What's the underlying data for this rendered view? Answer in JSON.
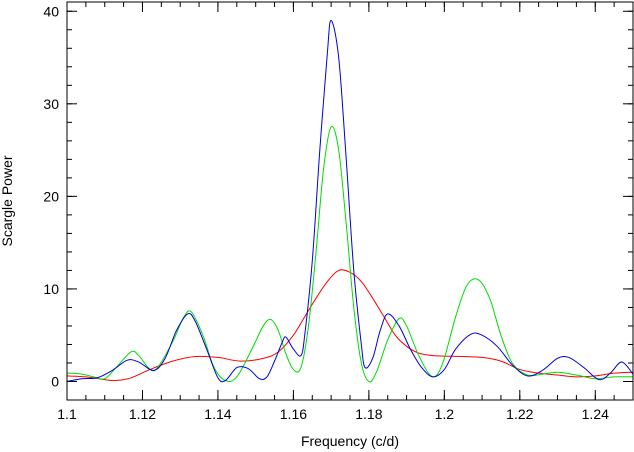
{
  "chart_data": {
    "type": "line",
    "title": "",
    "xlabel": "Frequency (c/d)",
    "ylabel": "Scargle Power",
    "xlim": [
      1.1,
      1.25
    ],
    "ylim": [
      -2,
      41
    ],
    "x_ticks": [
      {
        "value": 1.1,
        "label": "1.1"
      },
      {
        "value": 1.12,
        "label": "1.12"
      },
      {
        "value": 1.14,
        "label": "1.14"
      },
      {
        "value": 1.16,
        "label": "1.16"
      },
      {
        "value": 1.18,
        "label": "1.18"
      },
      {
        "value": 1.2,
        "label": "1.2"
      },
      {
        "value": 1.22,
        "label": "1.22"
      },
      {
        "value": 1.24,
        "label": "1.24"
      }
    ],
    "x_minor_step": 0.005,
    "y_ticks": [
      {
        "value": 0,
        "label": "0"
      },
      {
        "value": 10,
        "label": "10"
      },
      {
        "value": 20,
        "label": "20"
      },
      {
        "value": 30,
        "label": "30"
      },
      {
        "value": 40,
        "label": "40"
      }
    ],
    "y_minor_step": 2,
    "grid": false,
    "legend": "none",
    "series": [
      {
        "color": "#ff0000",
        "points": [
          [
            1.1,
            0.6
          ],
          [
            1.105,
            0.5
          ],
          [
            1.11,
            0.2
          ],
          [
            1.113,
            0.1
          ],
          [
            1.117,
            0.4
          ],
          [
            1.122,
            1.3
          ],
          [
            1.128,
            2.2
          ],
          [
            1.134,
            2.7
          ],
          [
            1.14,
            2.6
          ],
          [
            1.146,
            2.2
          ],
          [
            1.152,
            2.5
          ],
          [
            1.156,
            3.2
          ],
          [
            1.16,
            5.0
          ],
          [
            1.163,
            7.0
          ],
          [
            1.166,
            9.0
          ],
          [
            1.169,
            10.8
          ],
          [
            1.172,
            12.0
          ],
          [
            1.175,
            11.8
          ],
          [
            1.178,
            10.8
          ],
          [
            1.181,
            9.0
          ],
          [
            1.184,
            7.0
          ],
          [
            1.187,
            5.0
          ],
          [
            1.19,
            3.8
          ],
          [
            1.193,
            3.1
          ],
          [
            1.197,
            2.8
          ],
          [
            1.205,
            2.7
          ],
          [
            1.21,
            2.6
          ],
          [
            1.215,
            2.2
          ],
          [
            1.22,
            1.3
          ],
          [
            1.225,
            0.9
          ],
          [
            1.23,
            0.7
          ],
          [
            1.235,
            0.5
          ],
          [
            1.24,
            0.6
          ],
          [
            1.245,
            0.9
          ],
          [
            1.25,
            1.0
          ]
        ]
      },
      {
        "color": "#00dd00",
        "points": [
          [
            1.1,
            0.9
          ],
          [
            1.104,
            0.8
          ],
          [
            1.107,
            0.5
          ],
          [
            1.11,
            0.3
          ],
          [
            1.113,
            1.5
          ],
          [
            1.117,
            3.2
          ],
          [
            1.119,
            2.8
          ],
          [
            1.122,
            1.3
          ],
          [
            1.124,
            1.5
          ],
          [
            1.128,
            4.3
          ],
          [
            1.131,
            7.0
          ],
          [
            1.133,
            7.5
          ],
          [
            1.136,
            5.0
          ],
          [
            1.139,
            1.5
          ],
          [
            1.142,
            0.1
          ],
          [
            1.145,
            0.5
          ],
          [
            1.149,
            3.5
          ],
          [
            1.152,
            6.0
          ],
          [
            1.154,
            6.7
          ],
          [
            1.156,
            5.5
          ],
          [
            1.158,
            3.0
          ],
          [
            1.16,
            1.3
          ],
          [
            1.162,
            1.5
          ],
          [
            1.164,
            6.0
          ],
          [
            1.166,
            14.0
          ],
          [
            1.168,
            23.0
          ],
          [
            1.17,
            27.5
          ],
          [
            1.172,
            25.0
          ],
          [
            1.174,
            17.0
          ],
          [
            1.176,
            8.0
          ],
          [
            1.178,
            2.0
          ],
          [
            1.18,
            0.0
          ],
          [
            1.182,
            1.0
          ],
          [
            1.185,
            4.5
          ],
          [
            1.188,
            6.8
          ],
          [
            1.19,
            6.0
          ],
          [
            1.193,
            3.0
          ],
          [
            1.196,
            0.8
          ],
          [
            1.198,
            0.7
          ],
          [
            1.2,
            2.5
          ],
          [
            1.203,
            7.0
          ],
          [
            1.206,
            10.4
          ],
          [
            1.209,
            11.0
          ],
          [
            1.212,
            9.0
          ],
          [
            1.215,
            5.0
          ],
          [
            1.218,
            2.0
          ],
          [
            1.222,
            0.7
          ],
          [
            1.226,
            0.8
          ],
          [
            1.23,
            1.0
          ],
          [
            1.235,
            0.7
          ],
          [
            1.24,
            0.3
          ],
          [
            1.245,
            0.5
          ],
          [
            1.25,
            0.5
          ]
        ]
      },
      {
        "color": "#0000dd",
        "points": [
          [
            1.1,
            0.0
          ],
          [
            1.104,
            0.3
          ],
          [
            1.108,
            0.4
          ],
          [
            1.112,
            1.2
          ],
          [
            1.116,
            2.3
          ],
          [
            1.119,
            2.1
          ],
          [
            1.123,
            1.2
          ],
          [
            1.126,
            2.5
          ],
          [
            1.129,
            5.5
          ],
          [
            1.132,
            7.3
          ],
          [
            1.134,
            6.5
          ],
          [
            1.137,
            3.5
          ],
          [
            1.14,
            0.4
          ],
          [
            1.142,
            0.1
          ],
          [
            1.145,
            1.5
          ],
          [
            1.148,
            1.4
          ],
          [
            1.151,
            0.3
          ],
          [
            1.153,
            0.5
          ],
          [
            1.155,
            2.2
          ],
          [
            1.157,
            4.2
          ],
          [
            1.158,
            4.8
          ],
          [
            1.16,
            3.5
          ],
          [
            1.162,
            2.8
          ],
          [
            1.163,
            5.0
          ],
          [
            1.165,
            13.0
          ],
          [
            1.167,
            25.0
          ],
          [
            1.169,
            35.5
          ],
          [
            1.17,
            39.0
          ],
          [
            1.172,
            35.0
          ],
          [
            1.174,
            24.0
          ],
          [
            1.176,
            12.0
          ],
          [
            1.178,
            4.0
          ],
          [
            1.179,
            1.5
          ],
          [
            1.181,
            2.5
          ],
          [
            1.183,
            5.5
          ],
          [
            1.185,
            7.3
          ],
          [
            1.188,
            6.0
          ],
          [
            1.191,
            3.5
          ],
          [
            1.194,
            1.5
          ],
          [
            1.197,
            0.5
          ],
          [
            1.2,
            1.3
          ],
          [
            1.203,
            3.5
          ],
          [
            1.207,
            5.1
          ],
          [
            1.21,
            5.0
          ],
          [
            1.214,
            3.8
          ],
          [
            1.218,
            1.8
          ],
          [
            1.222,
            0.6
          ],
          [
            1.226,
            1.2
          ],
          [
            1.23,
            2.5
          ],
          [
            1.233,
            2.6
          ],
          [
            1.237,
            1.5
          ],
          [
            1.241,
            0.2
          ],
          [
            1.244,
            0.9
          ],
          [
            1.247,
            2.1
          ],
          [
            1.25,
            0.8
          ]
        ]
      }
    ]
  }
}
